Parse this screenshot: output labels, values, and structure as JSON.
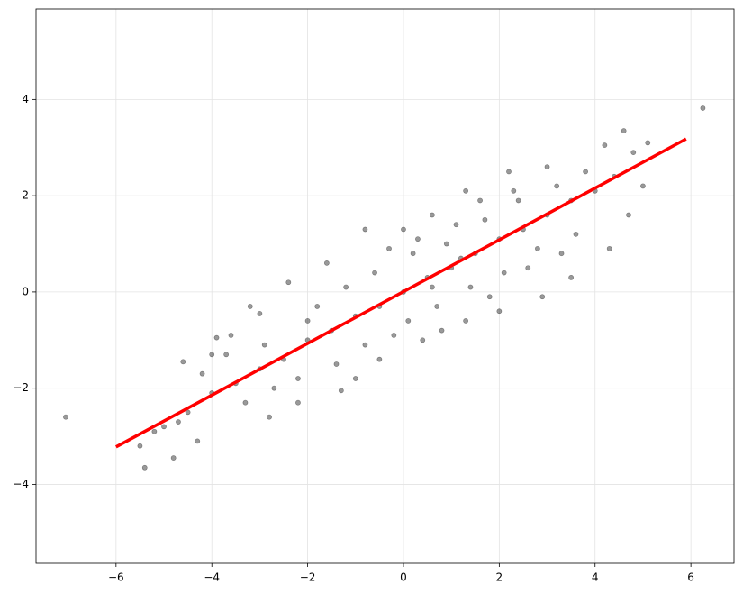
{
  "chart_data": {
    "type": "scatter",
    "xlim": [
      -7.67,
      6.9
    ],
    "ylim": [
      -5.64,
      5.88
    ],
    "xticks": [
      {
        "value": -6,
        "label": "−6"
      },
      {
        "value": -4,
        "label": "−4"
      },
      {
        "value": -2,
        "label": "−2"
      },
      0,
      2,
      4,
      6
    ],
    "yticks": [
      {
        "value": -4,
        "label": "−4"
      },
      {
        "value": -2,
        "label": "−2"
      },
      0,
      2,
      4
    ],
    "grid": true,
    "series": [
      {
        "color": "#000000",
        "x": [
          -7.05,
          6.25,
          -5.4,
          4.6,
          -5.5,
          -4.8,
          -4.3,
          -4.6,
          -4.0,
          -3.6,
          -3.0,
          -2.8,
          -2.2,
          -1.3,
          -0.5,
          0.8,
          1.3,
          2.0,
          2.9,
          3.5,
          4.3,
          4.7,
          5.0,
          5.1,
          4.2,
          3.0,
          2.2,
          1.3,
          0.6,
          0.0,
          -0.8,
          -1.6,
          -2.4,
          -3.2,
          -3.9,
          -2.0,
          -1.5,
          -1.0,
          -0.5,
          0.0,
          0.5,
          1.0,
          1.5,
          2.0,
          2.5,
          3.0,
          3.5,
          4.0,
          -2.5,
          -3.0,
          -3.5,
          -4.0,
          -4.5,
          -5.0,
          -1.8,
          -1.2,
          -0.6,
          0.2,
          0.9,
          1.7,
          2.4,
          3.2,
          -2.2,
          -1.4,
          -0.8,
          0.1,
          0.7,
          1.4,
          2.1,
          2.8,
          3.6,
          -3.3,
          -2.7,
          -4.2,
          -3.7,
          1.1,
          0.3,
          -0.3,
          2.6,
          3.3,
          -1.0,
          0.4,
          1.8,
          -0.2,
          0.6,
          1.2,
          -2.0,
          -2.9,
          3.8,
          4.4,
          4.8,
          -5.2,
          -4.7,
          2.3,
          1.6
        ],
        "values": [
          -2.6,
          3.82,
          -3.65,
          3.35,
          -3.2,
          -3.45,
          -3.1,
          -1.45,
          -1.3,
          -0.9,
          -0.45,
          -2.6,
          -2.3,
          -2.05,
          -1.4,
          -0.8,
          -0.6,
          -0.4,
          -0.1,
          0.3,
          0.9,
          1.6,
          2.2,
          3.1,
          3.05,
          2.6,
          2.5,
          2.1,
          1.6,
          1.3,
          1.3,
          0.6,
          0.2,
          -0.3,
          -0.95,
          -1.0,
          -0.8,
          -0.5,
          -0.3,
          0.0,
          0.3,
          0.5,
          0.8,
          1.1,
          1.3,
          1.6,
          1.9,
          2.1,
          -1.4,
          -1.6,
          -1.9,
          -2.1,
          -2.5,
          -2.8,
          -0.3,
          0.1,
          0.4,
          0.8,
          1.0,
          1.5,
          1.9,
          2.2,
          -1.8,
          -1.5,
          -1.1,
          -0.6,
          -0.3,
          0.1,
          0.4,
          0.9,
          1.2,
          -2.3,
          -2.0,
          -1.7,
          -1.3,
          1.4,
          1.1,
          0.9,
          0.5,
          0.8,
          -1.8,
          -1.0,
          -0.1,
          -0.9,
          0.1,
          0.7,
          -0.6,
          -1.1,
          2.5,
          2.4,
          2.9,
          -2.9,
          -2.7,
          2.1,
          1.9
        ]
      },
      {
        "type": "line",
        "color": "#ff0000",
        "x": [
          -6,
          5.9
        ],
        "values": [
          -3.22,
          3.18
        ]
      }
    ]
  }
}
